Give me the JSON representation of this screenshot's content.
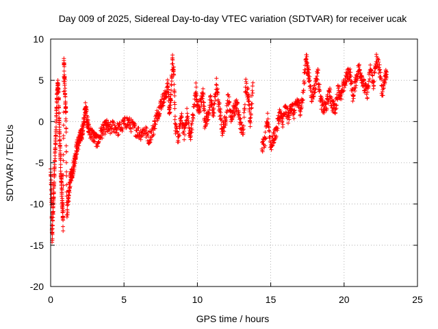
{
  "chart_data": {
    "type": "scatter",
    "title": "Day 009 of 2025, Sidereal Day-to-day VTEC variation (SDTVAR) for receiver ucak",
    "xlabel": "GPS time / hours",
    "ylabel": "SDTVAR / TECUs",
    "xlim": [
      0,
      25
    ],
    "ylim": [
      -20,
      10
    ],
    "xticks": [
      0,
      5,
      10,
      15,
      20,
      25
    ],
    "yticks": [
      -20,
      -15,
      -10,
      -5,
      0,
      5,
      10
    ],
    "grid": true,
    "marker": "+",
    "color": "#ff0000",
    "series": [
      {
        "name": "SDTVAR",
        "approximate_trace": [
          [
            0.0,
            -6.0
          ],
          [
            0.05,
            -8.5
          ],
          [
            0.1,
            -14.5
          ],
          [
            0.15,
            -11.5
          ],
          [
            0.2,
            -9.0
          ],
          [
            0.25,
            -6.5
          ],
          [
            0.3,
            -4.0
          ],
          [
            0.35,
            -2.0
          ],
          [
            0.4,
            1.5
          ],
          [
            0.45,
            3.5
          ],
          [
            0.5,
            4.8
          ],
          [
            0.55,
            2.5
          ],
          [
            0.6,
            -1.0
          ],
          [
            0.65,
            -3.5
          ],
          [
            0.7,
            -6.5
          ],
          [
            0.75,
            -8.0
          ],
          [
            0.8,
            -10.5
          ],
          [
            0.85,
            -12.5
          ],
          [
            0.9,
            7.2
          ],
          [
            0.95,
            5.5
          ],
          [
            1.0,
            2.5
          ],
          [
            1.05,
            0.5
          ],
          [
            1.1,
            -11.0
          ],
          [
            1.2,
            -10.0
          ],
          [
            1.3,
            -7.5
          ],
          [
            1.4,
            -6.5
          ],
          [
            1.5,
            -6.0
          ],
          [
            1.6,
            -5.0
          ],
          [
            1.7,
            -4.0
          ],
          [
            1.8,
            -3.0
          ],
          [
            1.9,
            -2.5
          ],
          [
            2.0,
            -2.0
          ],
          [
            2.1,
            -1.5
          ],
          [
            2.2,
            -1.0
          ],
          [
            2.3,
            0.5
          ],
          [
            2.4,
            2.0
          ],
          [
            2.5,
            0.0
          ],
          [
            2.6,
            -1.0
          ],
          [
            2.8,
            -1.5
          ],
          [
            3.0,
            -2.0
          ],
          [
            3.2,
            -2.5
          ],
          [
            3.4,
            -1.5
          ],
          [
            3.6,
            -1.0
          ],
          [
            3.8,
            -0.5
          ],
          [
            4.0,
            -1.0
          ],
          [
            4.3,
            -0.5
          ],
          [
            4.6,
            -1.0
          ],
          [
            4.9,
            -0.5
          ],
          [
            5.2,
            0.0
          ],
          [
            5.5,
            -0.5
          ],
          [
            5.8,
            -1.0
          ],
          [
            6.1,
            -1.5
          ],
          [
            6.4,
            -1.0
          ],
          [
            6.7,
            -2.0
          ],
          [
            7.0,
            -1.0
          ],
          [
            7.2,
            0.5
          ],
          [
            7.4,
            1.5
          ],
          [
            7.6,
            2.5
          ],
          [
            7.8,
            3.0
          ],
          [
            8.0,
            4.5
          ],
          [
            8.1,
            1.0
          ],
          [
            8.2,
            3.0
          ],
          [
            8.3,
            7.5
          ],
          [
            8.4,
            6.0
          ],
          [
            8.5,
            -1.0
          ],
          [
            8.7,
            -2.0
          ],
          [
            8.9,
            0.5
          ],
          [
            9.1,
            -1.5
          ],
          [
            9.3,
            1.0
          ],
          [
            9.5,
            -2.0
          ],
          [
            9.7,
            0.5
          ],
          [
            9.9,
            4.0
          ],
          [
            10.0,
            1.5
          ],
          [
            10.2,
            2.0
          ],
          [
            10.4,
            3.5
          ],
          [
            10.5,
            0.0
          ],
          [
            10.7,
            0.5
          ],
          [
            10.9,
            2.5
          ],
          [
            11.1,
            1.0
          ],
          [
            11.3,
            4.5
          ],
          [
            11.5,
            1.5
          ],
          [
            11.7,
            -1.0
          ],
          [
            11.9,
            0.0
          ],
          [
            12.1,
            3.0
          ],
          [
            12.3,
            0.5
          ],
          [
            12.5,
            1.5
          ],
          [
            12.7,
            2.0
          ],
          [
            12.9,
            0.0
          ],
          [
            13.1,
            -1.5
          ],
          [
            13.3,
            4.5
          ],
          [
            13.5,
            3.0
          ],
          [
            13.6,
            0.0
          ],
          [
            13.8,
            4.5
          ],
          [
            14.4,
            -3.0
          ],
          [
            14.6,
            -2.5
          ],
          [
            14.8,
            0.5
          ],
          [
            15.0,
            -3.0
          ],
          [
            15.2,
            -2.0
          ],
          [
            15.4,
            -1.0
          ],
          [
            15.6,
            1.0
          ],
          [
            15.8,
            0.0
          ],
          [
            16.0,
            1.5
          ],
          [
            16.2,
            0.5
          ],
          [
            16.4,
            2.0
          ],
          [
            16.6,
            1.0
          ],
          [
            16.8,
            2.5
          ],
          [
            17.0,
            1.5
          ],
          [
            17.2,
            3.0
          ],
          [
            17.4,
            8.0
          ],
          [
            17.5,
            6.5
          ],
          [
            17.6,
            5.5
          ],
          [
            17.8,
            3.0
          ],
          [
            18.0,
            4.0
          ],
          [
            18.2,
            6.0
          ],
          [
            18.4,
            2.5
          ],
          [
            18.6,
            1.5
          ],
          [
            18.8,
            2.0
          ],
          [
            19.0,
            3.5
          ],
          [
            19.2,
            2.0
          ],
          [
            19.4,
            1.5
          ],
          [
            19.6,
            4.0
          ],
          [
            19.8,
            3.0
          ],
          [
            20.0,
            4.5
          ],
          [
            20.2,
            5.5
          ],
          [
            20.4,
            6.0
          ],
          [
            20.6,
            3.0
          ],
          [
            20.8,
            5.0
          ],
          [
            21.0,
            6.5
          ],
          [
            21.2,
            5.5
          ],
          [
            21.4,
            4.0
          ],
          [
            21.6,
            3.5
          ],
          [
            21.8,
            6.5
          ],
          [
            22.0,
            4.5
          ],
          [
            22.2,
            7.5
          ],
          [
            22.4,
            6.5
          ],
          [
            22.6,
            3.5
          ],
          [
            22.8,
            5.5
          ],
          [
            22.9,
            6.0
          ]
        ]
      }
    ]
  }
}
